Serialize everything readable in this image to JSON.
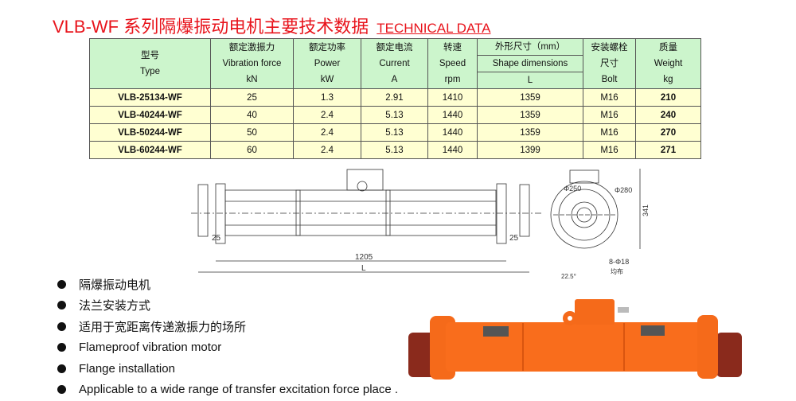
{
  "title": {
    "main": "VLB-WF 系列隔爆振动电机主要技术数据",
    "sub": "TECHNICAL DATA"
  },
  "table": {
    "headers": [
      {
        "cn": "型号",
        "en": "Type",
        "unit": ""
      },
      {
        "cn": "额定激振力",
        "en": "Vibration force",
        "unit": "kN"
      },
      {
        "cn": "额定功率",
        "en": "Power",
        "unit": "kW"
      },
      {
        "cn": "额定电流",
        "en": "Current",
        "unit": "A"
      },
      {
        "cn": "转速",
        "en": "Speed",
        "unit": "rpm"
      },
      {
        "cn": "外形尺寸（mm）",
        "en": "Shape dimensions",
        "unit": "L"
      },
      {
        "cn": "安装螺栓",
        "en": "尺寸",
        "unit": "Bolt"
      },
      {
        "cn": "质量",
        "en": "Weight",
        "unit": "kg"
      }
    ],
    "rows": [
      [
        "VLB-25134-WF",
        "25",
        "1.3",
        "2.91",
        "1410",
        "1359",
        "M16",
        "210"
      ],
      [
        "VLB-40244-WF",
        "40",
        "2.4",
        "5.13",
        "1440",
        "1359",
        "M16",
        "240"
      ],
      [
        "VLB-50244-WF",
        "50",
        "2.4",
        "5.13",
        "1440",
        "1359",
        "M16",
        "270"
      ],
      [
        "VLB-60244-WF",
        "60",
        "2.4",
        "5.13",
        "1440",
        "1399",
        "M16",
        "271"
      ]
    ]
  },
  "drawing": {
    "dim_25_left": "25",
    "dim_25_right": "25",
    "dim_1205": "1205",
    "dim_L": "L",
    "phi250": "Φ250",
    "phi280": "Φ280",
    "dim_341": "341",
    "holes": "8-Φ18",
    "holes_note": "均布",
    "angle": "22.5°"
  },
  "bullets": [
    "隔爆振动电机",
    "法兰安装方式",
    "适用于宽距离传递激振力的场所",
    "Flameproof vibration motor",
    "Flange installation",
    "Applicable to a wide range of transfer excitation force place ."
  ],
  "colors": {
    "title": "#e8141c",
    "header_bg": "#ccf5cc",
    "row_bg": "#ffffd2",
    "motor": "#f56a1a"
  }
}
